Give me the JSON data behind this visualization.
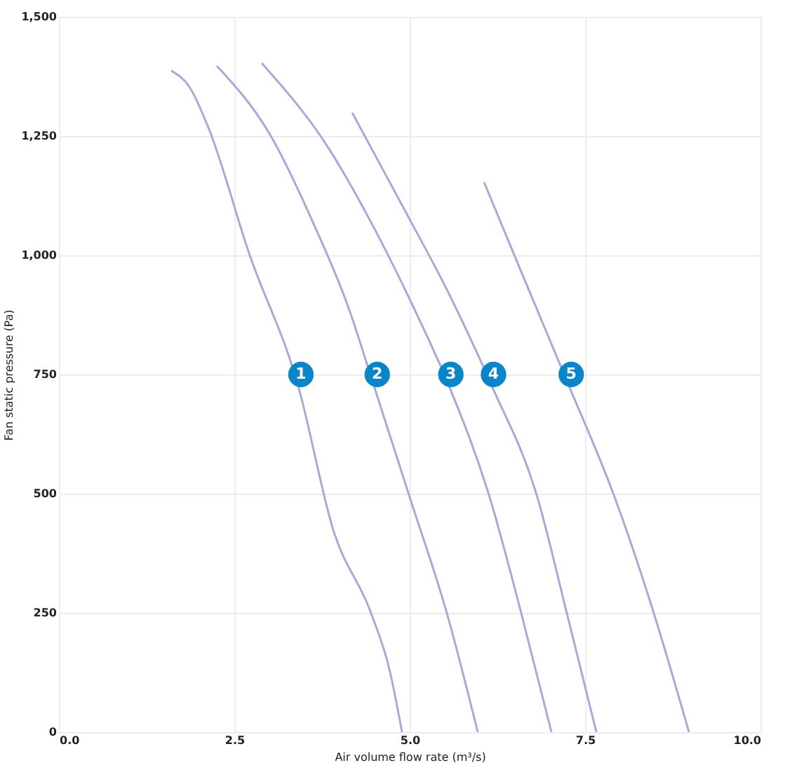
{
  "chart_data": {
    "type": "line",
    "xlabel": "Air volume flow rate (m³/s)",
    "ylabel": "Fan static pressure (Pa)",
    "xlim": [
      0,
      10
    ],
    "ylim": [
      0,
      1500
    ],
    "xticks": [
      {
        "value": 0,
        "label": "0.0"
      },
      2.5,
      {
        "value": 5,
        "label": "5.0"
      },
      7.5,
      {
        "value": 10,
        "label": "10.0"
      }
    ],
    "yticks": [
      0,
      250,
      500,
      750,
      {
        "value": 1000,
        "label": "1,000"
      },
      {
        "value": 1250,
        "label": "1,250"
      },
      {
        "value": 1500,
        "label": "1,500"
      }
    ],
    "grid": true,
    "marker": "none",
    "line_style": "solid",
    "series": [
      {
        "name": "1",
        "color": "#a9a9d8",
        "x": [
          1.6,
          1.86,
          2.14,
          2.71,
          3.41,
          3.91,
          4.45,
          4.71,
          4.89
        ],
        "values": [
          1387,
          1353,
          1264,
          1004,
          726,
          424,
          249,
          132,
          0
        ]
      },
      {
        "name": "2",
        "color": "#a9a9d8",
        "x": [
          2.25,
          3.0,
          3.63,
          4.13,
          4.49,
          4.99,
          5.53,
          5.97
        ],
        "values": [
          1397,
          1255,
          1066,
          889,
          726,
          497,
          249,
          0
        ]
      },
      {
        "name": "3",
        "color": "#a9a9d8",
        "x": [
          2.89,
          3.85,
          4.42,
          5.06,
          5.56,
          6.13,
          6.59,
          7.02
        ],
        "values": [
          1403,
          1223,
          1077,
          889,
          726,
          497,
          249,
          0
        ]
      },
      {
        "name": "4",
        "color": "#a9a9d8",
        "x": [
          4.18,
          4.92,
          5.56,
          6.17,
          6.81,
          7.24,
          7.66
        ],
        "values": [
          1299,
          1097,
          919,
          726,
          497,
          249,
          0
        ]
      },
      {
        "name": "5",
        "color": "#a9a9d8",
        "x": [
          6.06,
          6.63,
          7.27,
          7.91,
          8.48,
          8.98
        ],
        "values": [
          1153,
          951,
          726,
          497,
          249,
          0
        ]
      }
    ]
  }
}
